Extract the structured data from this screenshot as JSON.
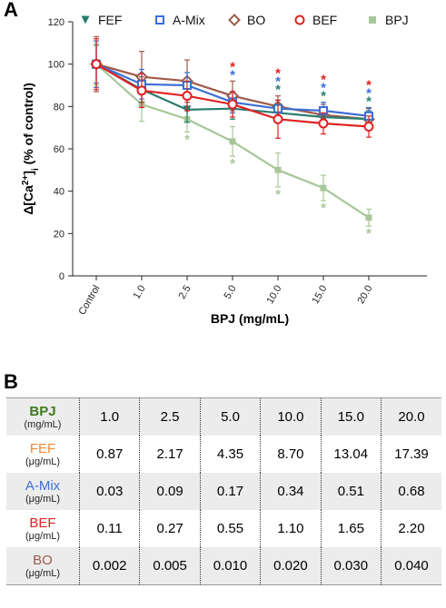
{
  "panel_a_label": "A",
  "panel_b_label": "B",
  "chart_data": {
    "type": "line",
    "categories": [
      "Control",
      "1.0",
      "2.5",
      "5.0",
      "10.0",
      "15.0",
      "20.0"
    ],
    "xlabel": "BPJ (mg/mL)",
    "ylabel_parts": {
      "pre": "Δ[Ca",
      "sup": "2+",
      "mid": "]",
      "sub": "i",
      "post": " (% of control)"
    },
    "ylim": [
      0,
      120
    ],
    "yticks": [
      0,
      20,
      40,
      60,
      80,
      100,
      120
    ],
    "legend_position": "top",
    "significance_mark": "*",
    "series": [
      {
        "name": "FEF",
        "color": "#2a7d6f",
        "marker": "triangle-down",
        "values": [
          100,
          88,
          78.5,
          79,
          77,
          75,
          74
        ],
        "errors": [
          9,
          6,
          6,
          5,
          4,
          4,
          4
        ]
      },
      {
        "name": "A-Mix",
        "color": "#3b6fd6",
        "marker": "square",
        "values": [
          100,
          90.5,
          90,
          82,
          79,
          78,
          75.5
        ],
        "errors": [
          11,
          7,
          6,
          5,
          4,
          4,
          4
        ]
      },
      {
        "name": "BO",
        "color": "#9e5a48",
        "marker": "diamond",
        "values": [
          100,
          94,
          92,
          85,
          80,
          76,
          74
        ],
        "errors": [
          13,
          12,
          10,
          7,
          5,
          5,
          5
        ]
      },
      {
        "name": "BEF",
        "color": "#e02222",
        "marker": "circle",
        "values": [
          100,
          87.5,
          85,
          81,
          74,
          72,
          70.5
        ],
        "errors": [
          12,
          8,
          7,
          6,
          9,
          5,
          5
        ]
      },
      {
        "name": "BPJ",
        "color": "#a8c79a",
        "marker": "square",
        "values": [
          100,
          81,
          74,
          63.5,
          50,
          41.5,
          27.5
        ],
        "errors": [
          10,
          8,
          6,
          7,
          8,
          6,
          4
        ]
      }
    ],
    "significance": [
      {
        "category": "2.5",
        "marks": [
          {
            "series": "BPJ",
            "position": "below"
          }
        ]
      },
      {
        "category": "5.0",
        "marks": [
          {
            "series": "BEF",
            "position": "above"
          },
          {
            "series": "A-Mix",
            "position": "above"
          },
          {
            "series": "BPJ",
            "position": "below"
          }
        ]
      },
      {
        "category": "10.0",
        "marks": [
          {
            "series": "BEF",
            "position": "above"
          },
          {
            "series": "A-Mix",
            "position": "above"
          },
          {
            "series": "FEF",
            "position": "above"
          },
          {
            "series": "BPJ",
            "position": "below"
          }
        ]
      },
      {
        "category": "15.0",
        "marks": [
          {
            "series": "BEF",
            "position": "above"
          },
          {
            "series": "A-Mix",
            "position": "above"
          },
          {
            "series": "FEF",
            "position": "above"
          },
          {
            "series": "BPJ",
            "position": "below"
          }
        ]
      },
      {
        "category": "20.0",
        "marks": [
          {
            "series": "BEF",
            "position": "above"
          },
          {
            "series": "A-Mix",
            "position": "above"
          },
          {
            "series": "FEF",
            "position": "above"
          },
          {
            "series": "BPJ",
            "position": "below"
          }
        ]
      }
    ]
  },
  "table": {
    "rows": [
      {
        "name": "BPJ",
        "unit": "(mg/mL)",
        "color": "#3f7a21",
        "bold": true,
        "shade": true,
        "values": [
          "1.0",
          "2.5",
          "5.0",
          "10.0",
          "15.0",
          "20.0"
        ]
      },
      {
        "name": "FEF",
        "unit": "(μg/mL)",
        "color": "#f08a3a",
        "bold": false,
        "shade": false,
        "values": [
          "0.87",
          "2.17",
          "4.35",
          "8.70",
          "13.04",
          "17.39"
        ]
      },
      {
        "name": "A-Mix",
        "unit": "(μg/mL)",
        "color": "#3b6fd6",
        "bold": false,
        "shade": true,
        "values": [
          "0.03",
          "0.09",
          "0.17",
          "0.34",
          "0.51",
          "0.68"
        ]
      },
      {
        "name": "BEF",
        "unit": "(μg/mL)",
        "color": "#e02222",
        "bold": false,
        "shade": false,
        "values": [
          "0.11",
          "0.27",
          "0.55",
          "1.10",
          "1.65",
          "2.20"
        ]
      },
      {
        "name": "BO",
        "unit": "(μg/mL)",
        "color": "#9e5a48",
        "bold": false,
        "shade": true,
        "values": [
          "0.002",
          "0.005",
          "0.010",
          "0.020",
          "0.030",
          "0.040"
        ]
      }
    ]
  }
}
